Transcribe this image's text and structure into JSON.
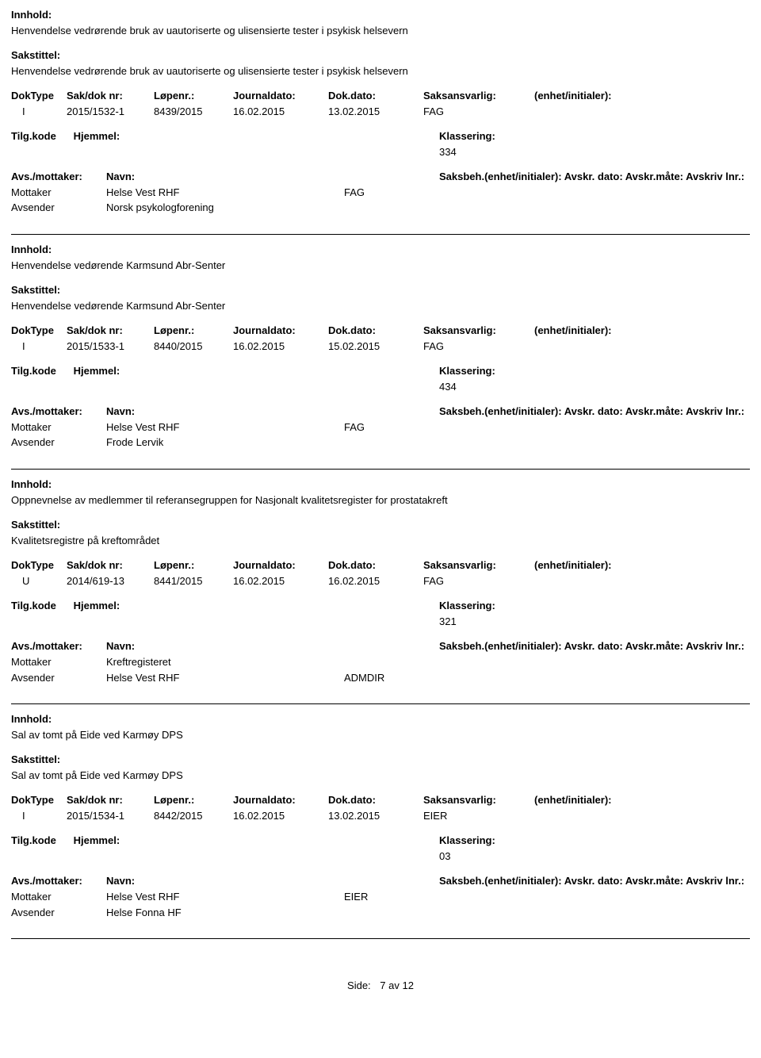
{
  "labels": {
    "innhold": "Innhold:",
    "sakstittel": "Sakstittel:",
    "dokType": "DokType",
    "sakDokNr": "Sak/dok nr:",
    "lopenr": "Løpenr.:",
    "journaldato": "Journaldato:",
    "dokDato": "Dok.dato:",
    "saksansvarlig": "Saksansvarlig:",
    "enhetInitialer": "(enhet/initialer):",
    "tilgKode": "Tilg.kode",
    "hjemmel": "Hjemmel:",
    "klassering": "Klassering:",
    "avsMottaker": "Avs./mottaker:",
    "navn": "Navn:",
    "saksbeh": "Saksbeh.(enhet/initialer): Avskr. dato:  Avskr.måte:  Avskriv lnr.:",
    "mottaker": "Mottaker",
    "avsender": "Avsender",
    "side": "Side:",
    "pageOf": "7 av 12"
  },
  "entries": [
    {
      "innhold": "Henvendelse vedrørende bruk av uautoriserte og ulisensierte tester i psykisk helsevern",
      "sakstittel": "Henvendelse vedrørende bruk av uautoriserte og ulisensierte tester i psykisk helsevern",
      "dokType": "I",
      "sakDokNr": "2015/1532-1",
      "lopenr": "8439/2015",
      "journaldato": "16.02.2015",
      "dokDato": "13.02.2015",
      "saksansvarlig": "FAG",
      "klassering": "334",
      "mottaker": "Helse Vest RHF",
      "mottakerSaksbeh": "FAG",
      "avsender": "Norsk psykologforening"
    },
    {
      "innhold": "Henvendelse vedørende Karmsund Abr-Senter",
      "sakstittel": "Henvendelse vedørende Karmsund Abr-Senter",
      "dokType": "I",
      "sakDokNr": "2015/1533-1",
      "lopenr": "8440/2015",
      "journaldato": "16.02.2015",
      "dokDato": "15.02.2015",
      "saksansvarlig": "FAG",
      "klassering": "434",
      "mottaker": "Helse Vest RHF",
      "mottakerSaksbeh": "FAG",
      "avsender": "Frode Lervik"
    },
    {
      "innhold": "Oppnevnelse av medlemmer til referansegruppen for Nasjonalt kvalitetsregister for prostatakreft",
      "sakstittel": "Kvalitetsregistre på kreftområdet",
      "dokType": "U",
      "sakDokNr": "2014/619-13",
      "lopenr": "8441/2015",
      "journaldato": "16.02.2015",
      "dokDato": "16.02.2015",
      "saksansvarlig": "FAG",
      "klassering": "321",
      "mottaker": "Kreftregisteret",
      "mottakerSaksbeh": "",
      "avsender": "Helse Vest RHF",
      "avsenderSaksbeh": "ADMDIR"
    },
    {
      "innhold": "Sal av tomt på Eide ved Karmøy DPS",
      "sakstittel": "Sal av tomt på Eide ved Karmøy DPS",
      "dokType": "I",
      "sakDokNr": "2015/1534-1",
      "lopenr": "8442/2015",
      "journaldato": "16.02.2015",
      "dokDato": "13.02.2015",
      "saksansvarlig": "EIER",
      "klassering": "03",
      "mottaker": "Helse Vest RHF",
      "mottakerSaksbeh": "EIER",
      "avsender": "Helse Fonna HF"
    }
  ]
}
